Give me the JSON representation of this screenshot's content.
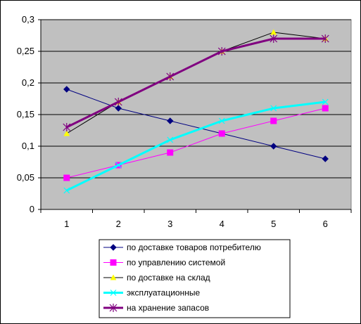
{
  "chart_data": {
    "type": "line",
    "title": "",
    "xlabel": "",
    "ylabel": "",
    "x": [
      1,
      2,
      3,
      4,
      5,
      6
    ],
    "x_tick_labels": [
      "1",
      "2",
      "3",
      "4",
      "5",
      "6"
    ],
    "ylim": [
      0,
      0.3
    ],
    "y_ticks": [
      0,
      0.05,
      0.1,
      0.15,
      0.2,
      0.25,
      0.3
    ],
    "y_tick_labels": [
      "0",
      "0,05",
      "0,1",
      "0,15",
      "0,2",
      "0,25",
      "0,3"
    ],
    "grid": "horizontal",
    "plot_background": "#c0c0c0",
    "legend_position": "bottom",
    "series": [
      {
        "name": "по доставке товаров потребителю",
        "color": "#000080",
        "marker": "diamond",
        "values": [
          0.19,
          0.16,
          0.14,
          0.12,
          0.1,
          0.08
        ]
      },
      {
        "name": "по управлению системой",
        "color": "#ff00ff",
        "marker": "square",
        "values": [
          0.05,
          0.07,
          0.09,
          0.12,
          0.14,
          0.16
        ]
      },
      {
        "name": "по доставке на склад",
        "color": "#000000",
        "marker": "triangle",
        "marker_color": "#ffff00",
        "values": [
          0.12,
          0.17,
          0.21,
          0.25,
          0.28,
          0.27
        ]
      },
      {
        "name": "эксплуатационные",
        "color": "#00ffff",
        "marker": "x",
        "values": [
          0.03,
          0.07,
          0.11,
          0.14,
          0.16,
          0.17
        ]
      },
      {
        "name": "на хранение запасов",
        "color": "#800080",
        "marker": "star",
        "values": [
          0.13,
          0.17,
          0.21,
          0.25,
          0.27,
          0.27
        ]
      }
    ]
  }
}
